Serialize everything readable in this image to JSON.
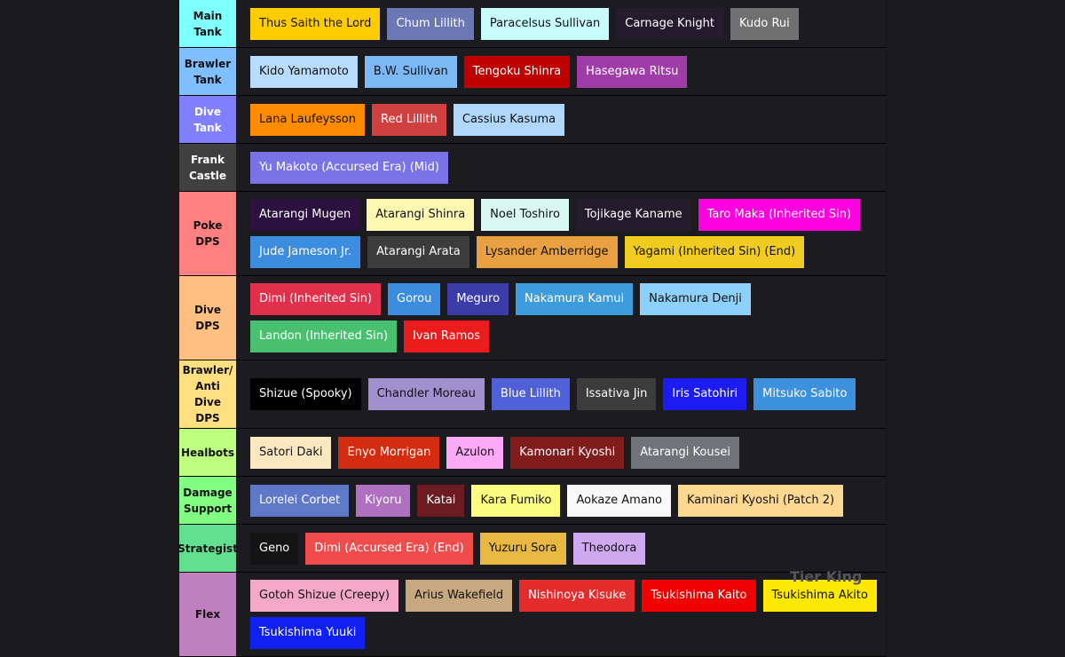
{
  "tiers": [
    {
      "label": "Main Tank",
      "color": "#80ffff",
      "items": [
        {
          "name": "Thus Saith the Lord",
          "color": "#ffcc00"
        },
        {
          "name": "Chum Lillith",
          "color": "#6b78b4"
        },
        {
          "name": "Paracelsus Sullivan",
          "color": "#c8fcfc"
        },
        {
          "name": "Carnage Knight",
          "color": "#241c2c"
        },
        {
          "name": "Kudo Rui",
          "color": "#707070"
        }
      ]
    },
    {
      "label": "Brawler Tank",
      "color": "#80bfff",
      "items": [
        {
          "name": "Kido Yamamoto",
          "color": "#b8dcfc"
        },
        {
          "name": "B.W. Sullivan",
          "color": "#7cb8f4"
        },
        {
          "name": "Tengoku Shinra",
          "color": "#c00000"
        },
        {
          "name": "Hasegawa Ritsu",
          "color": "#a03ca8"
        }
      ]
    },
    {
      "label": "Dive Tank",
      "color": "#8080ff",
      "items": [
        {
          "name": "Lana Laufeysson",
          "color": "#ff8c00"
        },
        {
          "name": "Red Lillith",
          "color": "#d04040"
        },
        {
          "name": "Cassius Kasuma",
          "color": "#b0d8fc"
        }
      ]
    },
    {
      "label": "Frank Castle",
      "color": "#404040",
      "items": [
        {
          "name": "Yu Makoto (Accursed Era) (Mid)",
          "color": "#7b72e8"
        }
      ]
    },
    {
      "label": "Poke DPS",
      "color": "#ff8080",
      "items": [
        {
          "name": "Atarangi Mugen",
          "color": "#2c1040"
        },
        {
          "name": "Atarangi Shinra",
          "color": "#fcf8b0"
        },
        {
          "name": "Noel Toshiro",
          "color": "#d8f8f0"
        },
        {
          "name": "Tojikage Kaname",
          "color": "#241c2c"
        },
        {
          "name": "Taro Maka (Inherited Sin)",
          "color": "#ff00e0"
        },
        {
          "name": "Jude Jameson Jr.",
          "color": "#3c8ce0"
        },
        {
          "name": "Atarangi Arata",
          "color": "#3c3c3c"
        },
        {
          "name": "Lysander Amberridge",
          "color": "#e8a040"
        },
        {
          "name": "Yagami (Inherited Sin) (End)",
          "color": "#f0cc20"
        }
      ]
    },
    {
      "label": "Dive DPS",
      "color": "#ffbf80",
      "items": [
        {
          "name": "Dimi (Inherited Sin)",
          "color": "#e0304c"
        },
        {
          "name": "Gorou",
          "color": "#3c8ce0"
        },
        {
          "name": "Meguro",
          "color": "#3c3ca8"
        },
        {
          "name": "Nakamura Kamui",
          "color": "#3c9cdc"
        },
        {
          "name": "Nakamura Denji",
          "color": "#8cd0fc"
        },
        {
          "name": "Landon (Inherited Sin)",
          "color": "#48c070"
        },
        {
          "name": "Ivan Ramos",
          "color": "#ec1c1c"
        }
      ]
    },
    {
      "label": "Brawler/ Anti Dive DPS",
      "color": "#ffdf80",
      "items": [
        {
          "name": "Shizue (Spooky)",
          "color": "#000000"
        },
        {
          "name": "Chandler Moreau",
          "color": "#a090d0"
        },
        {
          "name": "Blue Lillith",
          "color": "#5060d8"
        },
        {
          "name": "Issativa Jin",
          "color": "#3c3c3c"
        },
        {
          "name": "Iris Satohiri",
          "color": "#1c1cf0"
        },
        {
          "name": "Mitsuko Sabito",
          "color": "#3c90dc"
        }
      ]
    },
    {
      "label": "Healbots",
      "color": "#bfff80",
      "items": [
        {
          "name": "Satori Daki",
          "color": "#fce8c0"
        },
        {
          "name": "Enyo Morrigan",
          "color": "#d42c10"
        },
        {
          "name": "Azulon",
          "color": "#fcaaf8"
        },
        {
          "name": "Kamonari Kyoshi",
          "color": "#801c1c"
        },
        {
          "name": "Atarangi Kousei",
          "color": "#707478"
        }
      ]
    },
    {
      "label": "Damage Support",
      "color": "#80ff80",
      "items": [
        {
          "name": "Lorelei Corbet",
          "color": "#6078c8"
        },
        {
          "name": "Kiyoru",
          "color": "#b070c0"
        },
        {
          "name": "Katai",
          "color": "#6c1c20"
        },
        {
          "name": "Kara Fumiko",
          "color": "#fcfc80"
        },
        {
          "name": "Aokaze Amano",
          "color": "#f8f8f8"
        },
        {
          "name": "Kaminari Kyoshi (Patch 2)",
          "color": "#fcd890"
        }
      ]
    },
    {
      "label": "Strategist",
      "color": "#60e090",
      "items": [
        {
          "name": "Geno",
          "color": "#141414"
        },
        {
          "name": "Dimi (Accursed Era) (End)",
          "color": "#f04c4c"
        },
        {
          "name": "Yuzuru Sora",
          "color": "#e8b840"
        },
        {
          "name": "Theodora",
          "color": "#d0a8f0"
        }
      ]
    },
    {
      "label": "Flex",
      "color": "#c080c0",
      "items": [
        {
          "name": "Gotoh Shizue (Creepy)",
          "color": "#f4a8c8"
        },
        {
          "name": "Arius Wakefield",
          "color": "#c8a880"
        },
        {
          "name": "Nishinoya Kisuke",
          "color": "#e42c2c"
        },
        {
          "name": "Tsukishima Kaito",
          "color": "#f00000"
        },
        {
          "name": "Tsukishima Akito",
          "color": "#fce800"
        },
        {
          "name": "Tsukishima Yuuki",
          "color": "#1020f0"
        }
      ]
    }
  ],
  "watermark": "Tier King"
}
